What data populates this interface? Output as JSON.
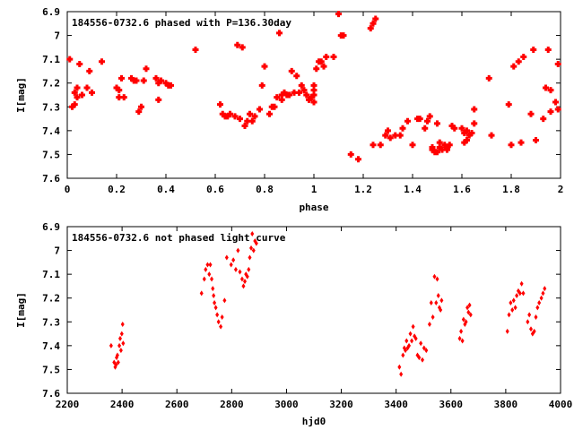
{
  "chart_data": [
    {
      "type": "scatter",
      "title": "184556-0732.6 phased with P=136.30day",
      "xlabel": "phase",
      "ylabel": "I[mag]",
      "xlim": [
        0,
        2
      ],
      "ylim": [
        6.9,
        7.6
      ],
      "y_inverted": true,
      "grid": false,
      "marker": "plus-square",
      "color": "#ff0000",
      "x_ticks": [
        0,
        0.2,
        0.4,
        0.6,
        0.8,
        1,
        1.2,
        1.4,
        1.6,
        1.8,
        2
      ],
      "x_tick_labels": [
        "0",
        "0.2",
        "0.4",
        "0.6",
        "0.8",
        "1",
        "1.2",
        "1.4",
        "1.6",
        "1.8",
        "2"
      ],
      "y_ticks": [
        6.9,
        7,
        7.1,
        7.2,
        7.3,
        7.4,
        7.5,
        7.6
      ],
      "y_tick_labels": [
        "6.9",
        "7",
        "7.1",
        "7.2",
        "7.3",
        "7.4",
        "7.5",
        "7.6"
      ],
      "points": [
        [
          0.01,
          7.1
        ],
        [
          0.02,
          7.3
        ],
        [
          0.03,
          7.29
        ],
        [
          0.03,
          7.24
        ],
        [
          0.04,
          7.26
        ],
        [
          0.04,
          7.22
        ],
        [
          0.05,
          7.12
        ],
        [
          0.06,
          7.25
        ],
        [
          0.08,
          7.22
        ],
        [
          0.09,
          7.15
        ],
        [
          0.1,
          7.24
        ],
        [
          0.14,
          7.11
        ],
        [
          0.2,
          7.22
        ],
        [
          0.21,
          7.23
        ],
        [
          0.21,
          7.26
        ],
        [
          0.22,
          7.18
        ],
        [
          0.23,
          7.26
        ],
        [
          0.26,
          7.18
        ],
        [
          0.27,
          7.19
        ],
        [
          0.28,
          7.19
        ],
        [
          0.29,
          7.32
        ],
        [
          0.3,
          7.3
        ],
        [
          0.31,
          7.19
        ],
        [
          0.32,
          7.14
        ],
        [
          0.36,
          7.18
        ],
        [
          0.37,
          7.2
        ],
        [
          0.37,
          7.27
        ],
        [
          0.38,
          7.19
        ],
        [
          0.4,
          7.2
        ],
        [
          0.41,
          7.21
        ],
        [
          0.42,
          7.21
        ],
        [
          0.52,
          7.06
        ],
        [
          0.62,
          7.29
        ],
        [
          0.63,
          7.33
        ],
        [
          0.64,
          7.34
        ],
        [
          0.65,
          7.34
        ],
        [
          0.66,
          7.33
        ],
        [
          0.68,
          7.34
        ],
        [
          0.69,
          7.04
        ],
        [
          0.7,
          7.35
        ],
        [
          0.71,
          7.05
        ],
        [
          0.72,
          7.38
        ],
        [
          0.73,
          7.36
        ],
        [
          0.74,
          7.33
        ],
        [
          0.75,
          7.36
        ],
        [
          0.76,
          7.34
        ],
        [
          0.78,
          7.31
        ],
        [
          0.79,
          7.21
        ],
        [
          0.8,
          7.13
        ],
        [
          0.82,
          7.33
        ],
        [
          0.83,
          7.3
        ],
        [
          0.84,
          7.3
        ],
        [
          0.85,
          7.26
        ],
        [
          0.86,
          6.99
        ],
        [
          0.87,
          7.27
        ],
        [
          0.87,
          7.25
        ],
        [
          0.88,
          7.24
        ],
        [
          0.89,
          7.25
        ],
        [
          0.9,
          7.25
        ],
        [
          0.91,
          7.15
        ],
        [
          0.92,
          7.24
        ],
        [
          0.93,
          7.17
        ],
        [
          0.94,
          7.24
        ],
        [
          0.95,
          7.21
        ],
        [
          0.96,
          7.23
        ],
        [
          0.97,
          7.25
        ],
        [
          0.98,
          7.27
        ],
        [
          0.99,
          7.26
        ],
        [
          1.0,
          7.28
        ],
        [
          1.0,
          7.25
        ],
        [
          1.0,
          7.21
        ],
        [
          1.0,
          7.23
        ],
        [
          1.01,
          7.14
        ],
        [
          1.02,
          7.11
        ],
        [
          1.03,
          7.11
        ],
        [
          1.04,
          7.13
        ],
        [
          1.05,
          7.09
        ],
        [
          1.08,
          7.09
        ],
        [
          1.1,
          6.91
        ],
        [
          1.11,
          7.0
        ],
        [
          1.12,
          7.0
        ],
        [
          1.15,
          7.5
        ],
        [
          1.18,
          7.52
        ],
        [
          1.23,
          6.97
        ],
        [
          1.24,
          6.95
        ],
        [
          1.25,
          6.93
        ],
        [
          1.24,
          7.46
        ],
        [
          1.27,
          7.46
        ],
        [
          1.29,
          7.42
        ],
        [
          1.3,
          7.4
        ],
        [
          1.31,
          7.43
        ],
        [
          1.33,
          7.42
        ],
        [
          1.35,
          7.42
        ],
        [
          1.36,
          7.39
        ],
        [
          1.38,
          7.36
        ],
        [
          1.4,
          7.46
        ],
        [
          1.42,
          7.35
        ],
        [
          1.43,
          7.35
        ],
        [
          1.45,
          7.39
        ],
        [
          1.46,
          7.36
        ],
        [
          1.47,
          7.34
        ],
        [
          1.48,
          7.48
        ],
        [
          1.48,
          7.47
        ],
        [
          1.49,
          7.49
        ],
        [
          1.5,
          7.37
        ],
        [
          1.5,
          7.49
        ],
        [
          1.51,
          7.45
        ],
        [
          1.51,
          7.47
        ],
        [
          1.52,
          7.48
        ],
        [
          1.53,
          7.46
        ],
        [
          1.54,
          7.48
        ],
        [
          1.54,
          7.47
        ],
        [
          1.55,
          7.46
        ],
        [
          1.56,
          7.38
        ],
        [
          1.57,
          7.39
        ],
        [
          1.6,
          7.39
        ],
        [
          1.61,
          7.41
        ],
        [
          1.61,
          7.45
        ],
        [
          1.62,
          7.44
        ],
        [
          1.62,
          7.4
        ],
        [
          1.63,
          7.42
        ],
        [
          1.64,
          7.41
        ],
        [
          1.65,
          7.37
        ],
        [
          1.65,
          7.31
        ],
        [
          1.71,
          7.18
        ],
        [
          1.72,
          7.42
        ],
        [
          1.79,
          7.29
        ],
        [
          1.8,
          7.46
        ],
        [
          1.81,
          7.13
        ],
        [
          1.83,
          7.11
        ],
        [
          1.84,
          7.45
        ],
        [
          1.85,
          7.09
        ],
        [
          1.88,
          7.33
        ],
        [
          1.89,
          7.06
        ],
        [
          1.9,
          7.44
        ],
        [
          1.93,
          7.35
        ],
        [
          1.94,
          7.22
        ],
        [
          1.95,
          7.06
        ],
        [
          1.96,
          7.32
        ],
        [
          1.96,
          7.23
        ],
        [
          1.98,
          7.28
        ],
        [
          1.99,
          7.12
        ],
        [
          1.99,
          7.31
        ]
      ]
    },
    {
      "type": "scatter",
      "title": "184556-0732.6 not phased light curve",
      "xlabel": "hjd0",
      "ylabel": "I[mag]",
      "xlim": [
        2200,
        4000
      ],
      "ylim": [
        6.9,
        7.6
      ],
      "y_inverted": true,
      "grid": false,
      "marker": "diamond",
      "color": "#ff0000",
      "x_ticks": [
        2200,
        2400,
        2600,
        2800,
        3000,
        3200,
        3400,
        3600,
        3800,
        4000
      ],
      "x_tick_labels": [
        "2200",
        "2400",
        "2600",
        "2800",
        "3000",
        "3200",
        "3400",
        "3600",
        "3800",
        "4000"
      ],
      "y_ticks": [
        6.9,
        7,
        7.1,
        7.2,
        7.3,
        7.4,
        7.5,
        7.6
      ],
      "y_tick_labels": [
        "6.9",
        "7",
        "7.1",
        "7.2",
        "7.3",
        "7.4",
        "7.5",
        "7.6"
      ],
      "points": [
        [
          2360,
          7.4
        ],
        [
          2371,
          7.47
        ],
        [
          2375,
          7.49
        ],
        [
          2378,
          7.48
        ],
        [
          2380,
          7.45
        ],
        [
          2383,
          7.44
        ],
        [
          2386,
          7.47
        ],
        [
          2390,
          7.4
        ],
        [
          2393,
          7.37
        ],
        [
          2396,
          7.42
        ],
        [
          2399,
          7.35
        ],
        [
          2402,
          7.31
        ],
        [
          2404,
          7.39
        ],
        [
          2690,
          7.18
        ],
        [
          2700,
          7.12
        ],
        [
          2705,
          7.08
        ],
        [
          2712,
          7.06
        ],
        [
          2718,
          7.1
        ],
        [
          2722,
          7.06
        ],
        [
          2727,
          7.12
        ],
        [
          2731,
          7.16
        ],
        [
          2734,
          7.19
        ],
        [
          2737,
          7.22
        ],
        [
          2742,
          7.24
        ],
        [
          2747,
          7.27
        ],
        [
          2752,
          7.3
        ],
        [
          2760,
          7.32
        ],
        [
          2765,
          7.28
        ],
        [
          2774,
          7.21
        ],
        [
          2782,
          7.03
        ],
        [
          2798,
          7.06
        ],
        [
          2806,
          7.04
        ],
        [
          2815,
          7.08
        ],
        [
          2823,
          7.0
        ],
        [
          2830,
          7.09
        ],
        [
          2838,
          7.12
        ],
        [
          2843,
          7.15
        ],
        [
          2848,
          7.13
        ],
        [
          2852,
          7.1
        ],
        [
          2857,
          7.11
        ],
        [
          2862,
          7.08
        ],
        [
          2866,
          7.03
        ],
        [
          2871,
          6.99
        ],
        [
          2875,
          6.93
        ],
        [
          2880,
          7.0
        ],
        [
          2885,
          6.96
        ],
        [
          2890,
          6.97
        ],
        [
          3412,
          7.49
        ],
        [
          3418,
          7.52
        ],
        [
          3425,
          7.44
        ],
        [
          3430,
          7.41
        ],
        [
          3434,
          7.42
        ],
        [
          3438,
          7.38
        ],
        [
          3442,
          7.41
        ],
        [
          3447,
          7.4
        ],
        [
          3452,
          7.35
        ],
        [
          3457,
          7.38
        ],
        [
          3462,
          7.32
        ],
        [
          3467,
          7.36
        ],
        [
          3472,
          7.37
        ],
        [
          3478,
          7.44
        ],
        [
          3484,
          7.45
        ],
        [
          3490,
          7.39
        ],
        [
          3496,
          7.46
        ],
        [
          3502,
          7.41
        ],
        [
          3510,
          7.42
        ],
        [
          3522,
          7.31
        ],
        [
          3528,
          7.22
        ],
        [
          3534,
          7.28
        ],
        [
          3540,
          7.11
        ],
        [
          3546,
          7.22
        ],
        [
          3550,
          7.12
        ],
        [
          3554,
          7.19
        ],
        [
          3558,
          7.24
        ],
        [
          3562,
          7.25
        ],
        [
          3566,
          7.21
        ],
        [
          3632,
          7.37
        ],
        [
          3637,
          7.34
        ],
        [
          3642,
          7.38
        ],
        [
          3646,
          7.29
        ],
        [
          3651,
          7.31
        ],
        [
          3655,
          7.3
        ],
        [
          3660,
          7.24
        ],
        [
          3664,
          7.26
        ],
        [
          3668,
          7.23
        ],
        [
          3672,
          7.27
        ],
        [
          3806,
          7.34
        ],
        [
          3812,
          7.27
        ],
        [
          3818,
          7.22
        ],
        [
          3824,
          7.25
        ],
        [
          3829,
          7.21
        ],
        [
          3835,
          7.24
        ],
        [
          3840,
          7.19
        ],
        [
          3846,
          7.17
        ],
        [
          3852,
          7.18
        ],
        [
          3858,
          7.14
        ],
        [
          3864,
          7.18
        ],
        [
          3880,
          7.3
        ],
        [
          3886,
          7.27
        ],
        [
          3892,
          7.33
        ],
        [
          3898,
          7.35
        ],
        [
          3904,
          7.34
        ],
        [
          3910,
          7.28
        ],
        [
          3916,
          7.24
        ],
        [
          3922,
          7.22
        ],
        [
          3930,
          7.2
        ],
        [
          3936,
          7.18
        ],
        [
          3942,
          7.16
        ]
      ]
    }
  ]
}
